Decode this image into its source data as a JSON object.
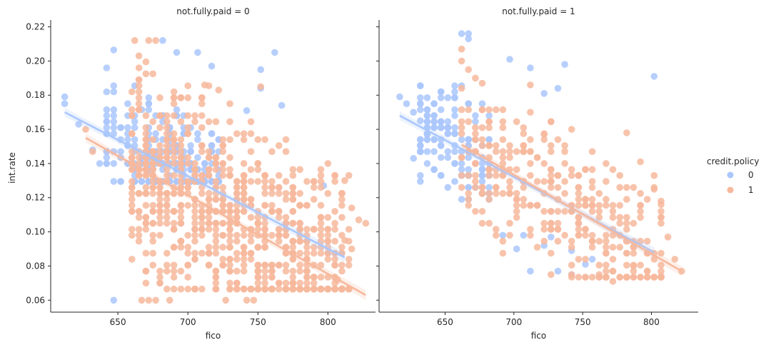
{
  "chart_data": {
    "type": "scatter",
    "xlabel": "fico",
    "ylabel": "int.rate",
    "xlim": [
      602,
      834
    ],
    "ylim": [
      0.053,
      0.224
    ],
    "xticks": [
      650,
      700,
      750,
      800
    ],
    "xtick_labels": [
      "650",
      "700",
      "750",
      "800"
    ],
    "yticks": [
      0.06,
      0.08,
      0.1,
      0.12,
      0.14,
      0.16,
      0.18,
      0.2,
      0.22
    ],
    "ytick_labels": [
      "0.06",
      "0.08",
      "0.10",
      "0.12",
      "0.14",
      "0.16",
      "0.18",
      "0.20",
      "0.22"
    ],
    "legend": {
      "title": "credit.policy",
      "placement": "right",
      "entries": [
        {
          "label": "0",
          "color": "#aac7fd"
        },
        {
          "label": "1",
          "color": "#f7b89c"
        }
      ]
    },
    "panels": [
      {
        "title": "not.fully.paid = 0",
        "series": [
          {
            "name": "0",
            "color": "#aac7fd",
            "fit": {
              "x0": 612,
              "y0": 0.17,
              "x1": 812,
              "y1": 0.085
            },
            "cloud": {
              "x_range": [
                642,
                722
              ],
              "y_range": [
                0.128,
                0.212
              ],
              "count": 220,
              "seed": 11
            },
            "points": [
              [
                612,
                0.179
              ],
              [
                612,
                0.175
              ],
              [
                622,
                0.163
              ],
              [
                632,
                0.148
              ],
              [
                637,
                0.14
              ],
              [
                647,
                0.06
              ],
              [
                742,
                0.171
              ],
              [
                752,
                0.195
              ],
              [
                752,
                0.184
              ],
              [
                762,
                0.205
              ],
              [
                767,
                0.174
              ],
              [
                797,
                0.127
              ],
              [
                682,
                0.212
              ],
              [
                692,
                0.205
              ],
              [
                707,
                0.205
              ],
              [
                717,
                0.197
              ]
            ]
          },
          {
            "name": "1",
            "color": "#f7b89c",
            "fit": {
              "x0": 627,
              "y0": 0.155,
              "x1": 827,
              "y1": 0.063
            },
            "cloud": {
              "x_range": [
                660,
                812
              ],
              "y_range": [
                0.065,
                0.202
              ],
              "count": 900,
              "seed": 23
            },
            "points": [
              [
                627,
                0.16
              ],
              [
                632,
                0.147
              ],
              [
                667,
                0.06
              ],
              [
                672,
                0.06
              ],
              [
                677,
                0.06
              ],
              [
                687,
                0.06
              ],
              [
                727,
                0.06
              ],
              [
                742,
                0.06
              ],
              [
                747,
                0.06
              ],
              [
                662,
                0.212
              ],
              [
                672,
                0.212
              ],
              [
                677,
                0.212
              ],
              [
                712,
                0.186
              ],
              [
                722,
                0.183
              ],
              [
                752,
                0.185
              ],
              [
                812,
                0.13
              ],
              [
                817,
                0.114
              ],
              [
                822,
                0.107
              ],
              [
                827,
                0.105
              ],
              [
                812,
                0.095
              ],
              [
                817,
                0.09
              ],
              [
                807,
                0.072
              ]
            ]
          }
        ]
      },
      {
        "title": "not.fully.paid = 1",
        "series": [
          {
            "name": "0",
            "color": "#aac7fd",
            "fit": {
              "x0": 617,
              "y0": 0.168,
              "x1": 802,
              "y1": 0.088
            },
            "cloud": {
              "x_range": [
                632,
                682
              ],
              "y_range": [
                0.118,
                0.186
              ],
              "count": 140,
              "seed": 37
            },
            "points": [
              [
                617,
                0.179
              ],
              [
                622,
                0.175
              ],
              [
                627,
                0.17
              ],
              [
                632,
                0.165
              ],
              [
                637,
                0.157
              ],
              [
                627,
                0.143
              ],
              [
                662,
                0.216
              ],
              [
                667,
                0.216
              ],
              [
                667,
                0.213
              ],
              [
                697,
                0.201
              ],
              [
                712,
                0.196
              ],
              [
                737,
                0.198
              ],
              [
                722,
                0.181
              ],
              [
                732,
                0.184
              ],
              [
                802,
                0.191
              ],
              [
                712,
                0.077
              ],
              [
                742,
                0.089
              ],
              [
                757,
                0.084
              ],
              [
                752,
                0.081
              ],
              [
                742,
                0.075
              ],
              [
                732,
                0.077
              ],
              [
                722,
                0.092
              ],
              [
                727,
                0.097
              ],
              [
                702,
                0.09
              ],
              [
                707,
                0.098
              ],
              [
                692,
                0.098
              ]
            ]
          },
          {
            "name": "1",
            "color": "#f7b89c",
            "fit": {
              "x0": 662,
              "y0": 0.151,
              "x1": 822,
              "y1": 0.077
            },
            "cloud": {
              "x_range": [
                662,
                807
              ],
              "y_range": [
                0.073,
                0.172
              ],
              "count": 330,
              "seed": 53
            },
            "points": [
              [
                662,
                0.207
              ],
              [
                662,
                0.2
              ],
              [
                667,
                0.195
              ],
              [
                672,
                0.19
              ],
              [
                677,
                0.187
              ],
              [
                662,
                0.184
              ],
              [
                712,
                0.186
              ],
              [
                712,
                0.17
              ],
              [
                722,
                0.157
              ],
              [
                742,
                0.16
              ],
              [
                782,
                0.158
              ],
              [
                792,
                0.141
              ],
              [
                802,
                0.125
              ],
              [
                807,
                0.118
              ],
              [
                807,
                0.116
              ],
              [
                812,
                0.097
              ],
              [
                817,
                0.084
              ],
              [
                822,
                0.077
              ],
              [
                807,
                0.074
              ],
              [
                787,
                0.08
              ],
              [
                772,
                0.071
              ],
              [
                762,
                0.075
              ],
              [
                742,
                0.075
              ],
              [
                727,
                0.075
              ]
            ]
          }
        ]
      }
    ]
  }
}
